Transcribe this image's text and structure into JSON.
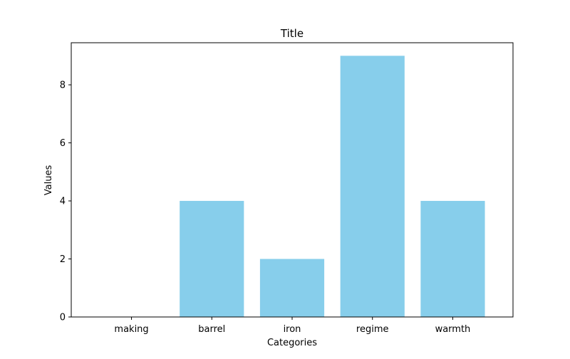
{
  "chart_data": {
    "type": "bar",
    "title": "Title",
    "xlabel": "Categories",
    "ylabel": "Values",
    "categories": [
      "making",
      "barrel",
      "iron",
      "regime",
      "warmth"
    ],
    "values": [
      0,
      4,
      2,
      9,
      4
    ],
    "ylim": [
      0,
      9.45
    ],
    "yticks": [
      0,
      2,
      4,
      6,
      8
    ],
    "grid": false,
    "colors": {
      "bar": "#87CEEB",
      "axis": "#000000",
      "background": "#ffffff"
    }
  }
}
